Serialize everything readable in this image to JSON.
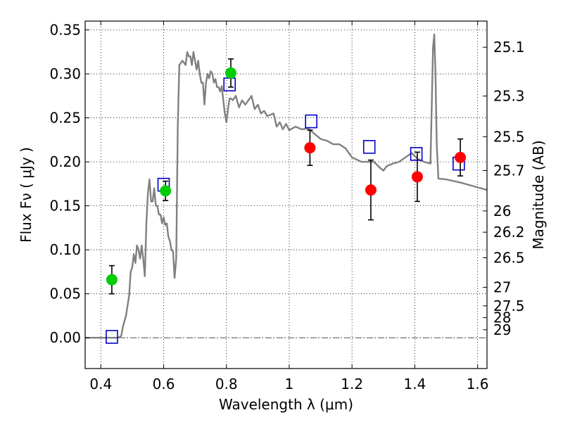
{
  "chart_data": {
    "type": "scatter",
    "xlabel": "Wavelength  λ (μm)",
    "ylabel": "Flux  Fν  ( μJy )",
    "ylabel_right": "Magnitude (AB)",
    "xlim": [
      0.35,
      1.63
    ],
    "ylim": [
      -0.035,
      0.36
    ],
    "grid": true,
    "x_ticks": [
      0.4,
      0.6,
      0.8,
      1.0,
      1.2,
      1.4,
      1.6
    ],
    "x_tick_labels": [
      "0.4",
      "0.6",
      "0.8",
      "1",
      "1.2",
      "1.4",
      "1.6"
    ],
    "y_ticks": [
      0.0,
      0.05,
      0.1,
      0.15,
      0.2,
      0.25,
      0.3,
      0.35
    ],
    "y_tick_labels": [
      "0.00",
      "0.05",
      "0.10",
      "0.15",
      "0.20",
      "0.25",
      "0.30",
      "0.35"
    ],
    "right_ticks": [
      {
        "label": "25.1",
        "flux": 0.3303
      },
      {
        "label": "25.3",
        "flux": 0.2748
      },
      {
        "label": "25.5",
        "flux": 0.2286
      },
      {
        "label": "25.7",
        "flux": 0.1901
      },
      {
        "label": "26",
        "flux": 0.1442
      },
      {
        "label": "26.2",
        "flux": 0.12
      },
      {
        "label": "26.5",
        "flux": 0.091
      },
      {
        "label": "27",
        "flux": 0.0574
      },
      {
        "label": "27.5",
        "flux": 0.0363
      },
      {
        "label": "28",
        "flux": 0.0229
      },
      {
        "label": "29",
        "flux": 0.0091
      }
    ],
    "series": [
      {
        "marker": "line",
        "color": "#808080",
        "points": [
          [
            0.35,
            0.0
          ],
          [
            0.455,
            0.0
          ],
          [
            0.465,
            0.002
          ],
          [
            0.47,
            0.012
          ],
          [
            0.48,
            0.025
          ],
          [
            0.49,
            0.048
          ],
          [
            0.495,
            0.075
          ],
          [
            0.5,
            0.08
          ],
          [
            0.505,
            0.095
          ],
          [
            0.51,
            0.085
          ],
          [
            0.515,
            0.105
          ],
          [
            0.52,
            0.1
          ],
          [
            0.525,
            0.09
          ],
          [
            0.53,
            0.105
          ],
          [
            0.535,
            0.09
          ],
          [
            0.54,
            0.07
          ],
          [
            0.545,
            0.13
          ],
          [
            0.55,
            0.165
          ],
          [
            0.555,
            0.18
          ],
          [
            0.56,
            0.155
          ],
          [
            0.565,
            0.155
          ],
          [
            0.57,
            0.17
          ],
          [
            0.575,
            0.15
          ],
          [
            0.58,
            0.15
          ],
          [
            0.585,
            0.14
          ],
          [
            0.59,
            0.14
          ],
          [
            0.595,
            0.13
          ],
          [
            0.6,
            0.137
          ],
          [
            0.605,
            0.128
          ],
          [
            0.61,
            0.13
          ],
          [
            0.615,
            0.115
          ],
          [
            0.62,
            0.11
          ],
          [
            0.625,
            0.1
          ],
          [
            0.63,
            0.098
          ],
          [
            0.635,
            0.068
          ],
          [
            0.64,
            0.09
          ],
          [
            0.645,
            0.24
          ],
          [
            0.65,
            0.31
          ],
          [
            0.66,
            0.315
          ],
          [
            0.67,
            0.31
          ],
          [
            0.675,
            0.325
          ],
          [
            0.68,
            0.32
          ],
          [
            0.685,
            0.32
          ],
          [
            0.69,
            0.31
          ],
          [
            0.695,
            0.325
          ],
          [
            0.7,
            0.315
          ],
          [
            0.705,
            0.305
          ],
          [
            0.71,
            0.315
          ],
          [
            0.715,
            0.3
          ],
          [
            0.72,
            0.29
          ],
          [
            0.725,
            0.29
          ],
          [
            0.73,
            0.265
          ],
          [
            0.735,
            0.29
          ],
          [
            0.74,
            0.3
          ],
          [
            0.745,
            0.295
          ],
          [
            0.75,
            0.303
          ],
          [
            0.755,
            0.3
          ],
          [
            0.76,
            0.29
          ],
          [
            0.765,
            0.294
          ],
          [
            0.77,
            0.285
          ],
          [
            0.775,
            0.285
          ],
          [
            0.78,
            0.28
          ],
          [
            0.785,
            0.286
          ],
          [
            0.79,
            0.27
          ],
          [
            0.795,
            0.255
          ],
          [
            0.8,
            0.245
          ],
          [
            0.805,
            0.26
          ],
          [
            0.81,
            0.272
          ],
          [
            0.815,
            0.272
          ],
          [
            0.82,
            0.27
          ],
          [
            0.83,
            0.275
          ],
          [
            0.84,
            0.262
          ],
          [
            0.85,
            0.27
          ],
          [
            0.86,
            0.265
          ],
          [
            0.87,
            0.27
          ],
          [
            0.88,
            0.275
          ],
          [
            0.89,
            0.26
          ],
          [
            0.9,
            0.265
          ],
          [
            0.91,
            0.255
          ],
          [
            0.92,
            0.258
          ],
          [
            0.93,
            0.252
          ],
          [
            0.95,
            0.255
          ],
          [
            0.96,
            0.24
          ],
          [
            0.97,
            0.245
          ],
          [
            0.98,
            0.237
          ],
          [
            0.99,
            0.243
          ],
          [
            1.0,
            0.236
          ],
          [
            1.02,
            0.24
          ],
          [
            1.04,
            0.237
          ],
          [
            1.06,
            0.238
          ],
          [
            1.08,
            0.232
          ],
          [
            1.1,
            0.226
          ],
          [
            1.12,
            0.224
          ],
          [
            1.14,
            0.22
          ],
          [
            1.16,
            0.22
          ],
          [
            1.18,
            0.215
          ],
          [
            1.2,
            0.205
          ],
          [
            1.23,
            0.2
          ],
          [
            1.25,
            0.2
          ],
          [
            1.27,
            0.2
          ],
          [
            1.29,
            0.193
          ],
          [
            1.3,
            0.19
          ],
          [
            1.31,
            0.195
          ],
          [
            1.33,
            0.198
          ],
          [
            1.35,
            0.2
          ],
          [
            1.37,
            0.205
          ],
          [
            1.39,
            0.21
          ],
          [
            1.41,
            0.203
          ],
          [
            1.43,
            0.2
          ],
          [
            1.45,
            0.198
          ],
          [
            1.458,
            0.33
          ],
          [
            1.462,
            0.345
          ],
          [
            1.466,
            0.3
          ],
          [
            1.47,
            0.22
          ],
          [
            1.475,
            0.181
          ],
          [
            1.5,
            0.18
          ],
          [
            1.55,
            0.176
          ],
          [
            1.6,
            0.171
          ],
          [
            1.63,
            0.168
          ]
        ]
      },
      {
        "marker": "circle",
        "color": "#00cc00",
        "points": [
          {
            "x": 0.435,
            "y": 0.066,
            "err": 0.016
          },
          {
            "x": 0.606,
            "y": 0.167,
            "err": 0.011
          },
          {
            "x": 0.814,
            "y": 0.301,
            "err": 0.016
          }
        ]
      },
      {
        "marker": "circle",
        "color": "#ff0000",
        "points": [
          {
            "x": 1.066,
            "y": 0.216,
            "err": 0.02
          },
          {
            "x": 1.26,
            "y": 0.168,
            "err": 0.034
          },
          {
            "x": 1.408,
            "y": 0.183,
            "err": 0.028
          },
          {
            "x": 1.545,
            "y": 0.205,
            "err": 0.021
          }
        ]
      },
      {
        "marker": "square",
        "color": "#0000cc",
        "points": [
          {
            "x": 0.435,
            "y": 0.001
          },
          {
            "x": 0.6,
            "y": 0.174
          },
          {
            "x": 0.81,
            "y": 0.288
          },
          {
            "x": 1.07,
            "y": 0.246
          },
          {
            "x": 1.255,
            "y": 0.217
          },
          {
            "x": 1.405,
            "y": 0.209
          },
          {
            "x": 1.54,
            "y": 0.198
          }
        ]
      }
    ]
  }
}
